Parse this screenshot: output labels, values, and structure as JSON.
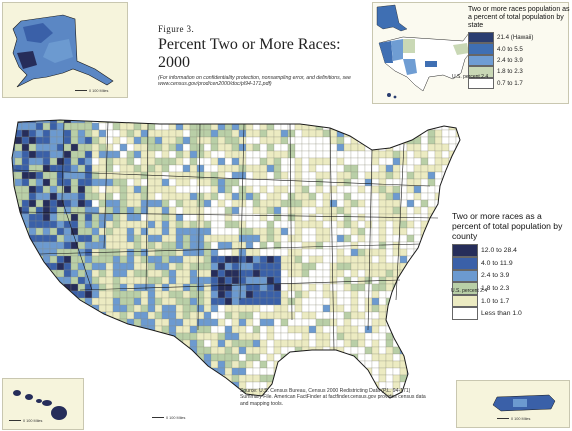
{
  "figure": {
    "label": "Figure 3.",
    "title_line1": "Percent Two or More Races:",
    "title_line2": "2000",
    "note": "(For information on confidentiality protection, nonsampling error, and definitions, see www.census.gov/prod/cen2000/doc/pl94-171.pdf)"
  },
  "state_legend": {
    "title": "Two or more races population as a percent of total population by state",
    "reference_label": "U.S. percent 2.4",
    "classes": [
      {
        "label": "21.4 (Hawaii)",
        "color": "#2a3d70"
      },
      {
        "label": "4.0 to 5.5",
        "color": "#3f6fb3"
      },
      {
        "label": "2.4 to 3.9",
        "color": "#6f9dd3"
      },
      {
        "label": "1.8 to 2.3",
        "color": "#c9d8b5"
      },
      {
        "label": "0.7 to 1.7",
        "color": "#ffffff"
      }
    ]
  },
  "county_legend": {
    "title": "Two or more races as a percent of total population by county",
    "reference_label": "U.S. percent 2.4",
    "classes": [
      {
        "label": "12.0 to 28.4",
        "color": "#262d5a"
      },
      {
        "label": "4.0 to 11.9",
        "color": "#3a60a8"
      },
      {
        "label": "2.4 to 3.9",
        "color": "#6c9ad0"
      },
      {
        "label": "1.8 to 2.3",
        "color": "#b9cfa7"
      },
      {
        "label": "1.0 to 1.7",
        "color": "#ecebc2"
      },
      {
        "label": "Less than 1.0",
        "color": "#ffffff"
      }
    ]
  },
  "scales": {
    "alaska": "0   100 Miles",
    "hawaii": "0   100 Miles",
    "conus": "0   100 Miles",
    "puerto_rico": "0   100 Miles"
  },
  "source": "Source: U.S. Census Bureau, Census 2000 Redistricting Data (P.L. 94-171) Summary File. American FactFinder at factfinder.census.gov provides census data and mapping tools.",
  "colors": {
    "ocean": "#ffffff",
    "inset_bg": "#f6f4dc",
    "state_border": "#1a1a1a",
    "county_border": "#8a8a7a"
  }
}
